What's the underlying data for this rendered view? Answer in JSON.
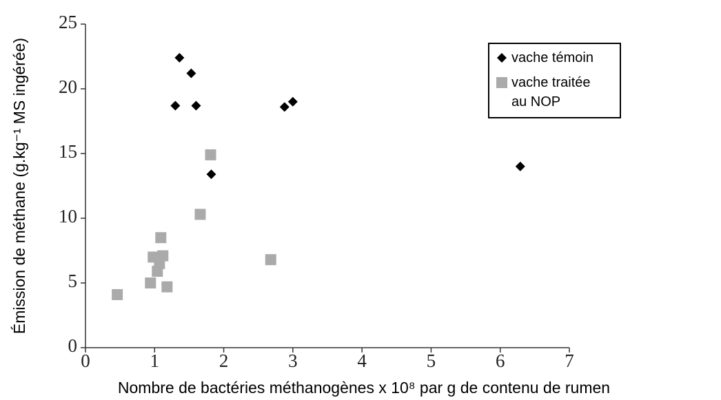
{
  "chart_data": {
    "type": "scatter",
    "x_label": "Nombre de bactéries méthanogènes x 10⁸ par g de contenu de rumen",
    "y_label": "Émission de méthane (g.kg⁻¹ MS ingérée)",
    "xlim": [
      0,
      7
    ],
    "xticks": [
      0,
      1,
      2,
      3,
      4,
      5,
      6,
      7
    ],
    "ylim": [
      0,
      25
    ],
    "yticks": [
      0,
      5,
      10,
      15,
      20,
      25
    ],
    "series": [
      {
        "name": "vache témoin",
        "color": "#000000",
        "marker": "diamond",
        "x": [
          1.36,
          1.53,
          1.3,
          1.6,
          1.82,
          2.88,
          3.0,
          6.29
        ],
        "values": [
          22.4,
          21.2,
          18.7,
          18.7,
          13.4,
          18.6,
          19.0,
          14.0
        ]
      },
      {
        "name": "vache traitée au NOP",
        "color": "#aaaaaa",
        "marker": "square",
        "x": [
          0.46,
          0.94,
          0.98,
          1.04,
          1.07,
          1.12,
          1.09,
          1.18,
          1.66,
          1.81,
          2.68
        ],
        "values": [
          4.1,
          5.0,
          7.0,
          5.9,
          6.5,
          7.1,
          8.5,
          4.7,
          10.3,
          14.9,
          6.8
        ]
      }
    ]
  }
}
